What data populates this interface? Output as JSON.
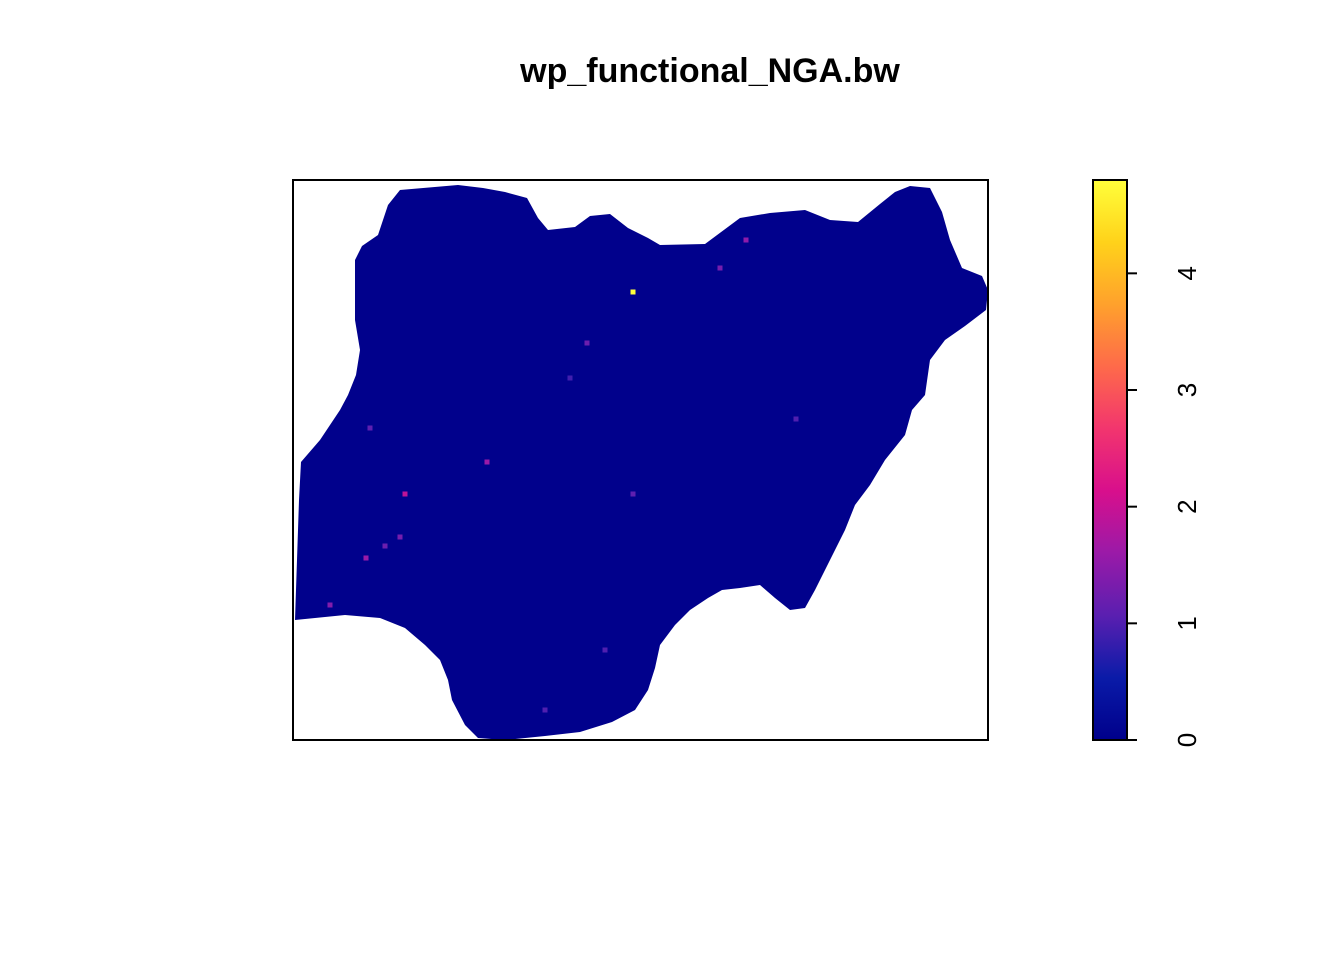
{
  "title": "wp_functional_NGA.bw",
  "legend": {
    "ticks": [
      0,
      1,
      2,
      3,
      4
    ],
    "range": [
      0,
      4.8
    ],
    "colors": [
      "#00008B",
      "#0A1BA8",
      "#5A1FB0",
      "#9A1AA8",
      "#D80F8C",
      "#F2356E",
      "#FE6A4A",
      "#FFA12C",
      "#FFD21A",
      "#FFFF3A"
    ],
    "position": "right"
  },
  "map": {
    "region": "Nigeria",
    "base_color": "#01018C",
    "hotspots": [
      {
        "id": "h1",
        "value": 4.8
      },
      {
        "id": "h2",
        "value": 1.9
      },
      {
        "id": "h3",
        "value": 1.6
      },
      {
        "id": "h4",
        "value": 1.4
      },
      {
        "id": "h5",
        "value": 1.6
      },
      {
        "id": "h6",
        "value": 1.3
      },
      {
        "id": "h7",
        "value": 1.5
      },
      {
        "id": "h8",
        "value": 1.2
      },
      {
        "id": "h9",
        "value": 1.1
      },
      {
        "id": "h10",
        "value": 1.0
      },
      {
        "id": "h11",
        "value": 1.3
      },
      {
        "id": "h12",
        "value": 1.2
      },
      {
        "id": "h13",
        "value": 1.0
      },
      {
        "id": "h14",
        "value": 1.1
      },
      {
        "id": "h15",
        "value": 0.9
      },
      {
        "id": "h16",
        "value": 1.0
      }
    ]
  }
}
